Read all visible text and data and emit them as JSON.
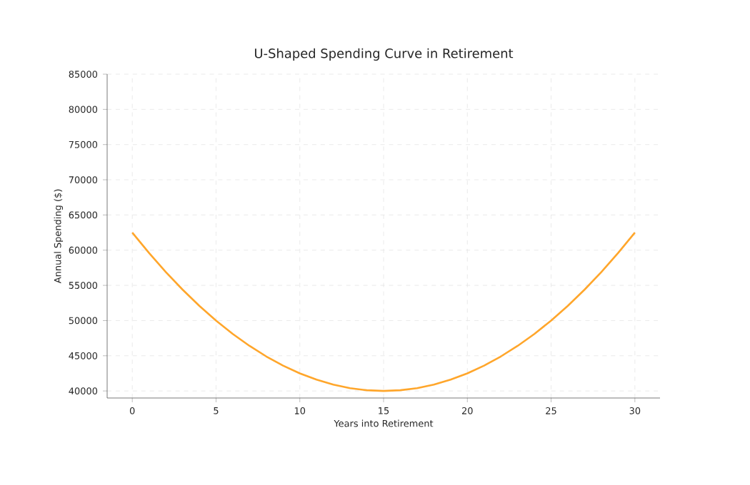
{
  "chart_data": {
    "type": "line",
    "title": "U-Shaped Spending Curve in Retirement",
    "xlabel": "Years into Retirement",
    "ylabel": "Annual Spending ($)",
    "x": [
      0,
      1,
      2,
      3,
      4,
      5,
      6,
      7,
      8,
      9,
      10,
      11,
      12,
      13,
      14,
      15,
      16,
      17,
      18,
      19,
      20,
      21,
      22,
      23,
      24,
      25,
      26,
      27,
      28,
      29,
      30
    ],
    "series": [
      {
        "color": "#ffa62b",
        "values": [
          62500,
          59600,
          56900,
          54400,
          52100,
          50000,
          48100,
          46400,
          44900,
          43600,
          42500,
          41600,
          40900,
          40400,
          40100,
          40000,
          40100,
          40400,
          40900,
          41600,
          42500,
          43600,
          44900,
          46400,
          48100,
          50000,
          52100,
          54400,
          56900,
          59600,
          62500
        ]
      }
    ],
    "xlim": [
      -1.5,
      31.5
    ],
    "ylim": [
      39000,
      85000
    ],
    "xticks": [
      0,
      5,
      10,
      15,
      20,
      25,
      30
    ],
    "yticks": [
      40000,
      45000,
      50000,
      55000,
      60000,
      65000,
      70000,
      75000,
      80000,
      85000
    ],
    "grid": true,
    "marker": "none",
    "line_style": "solid"
  }
}
